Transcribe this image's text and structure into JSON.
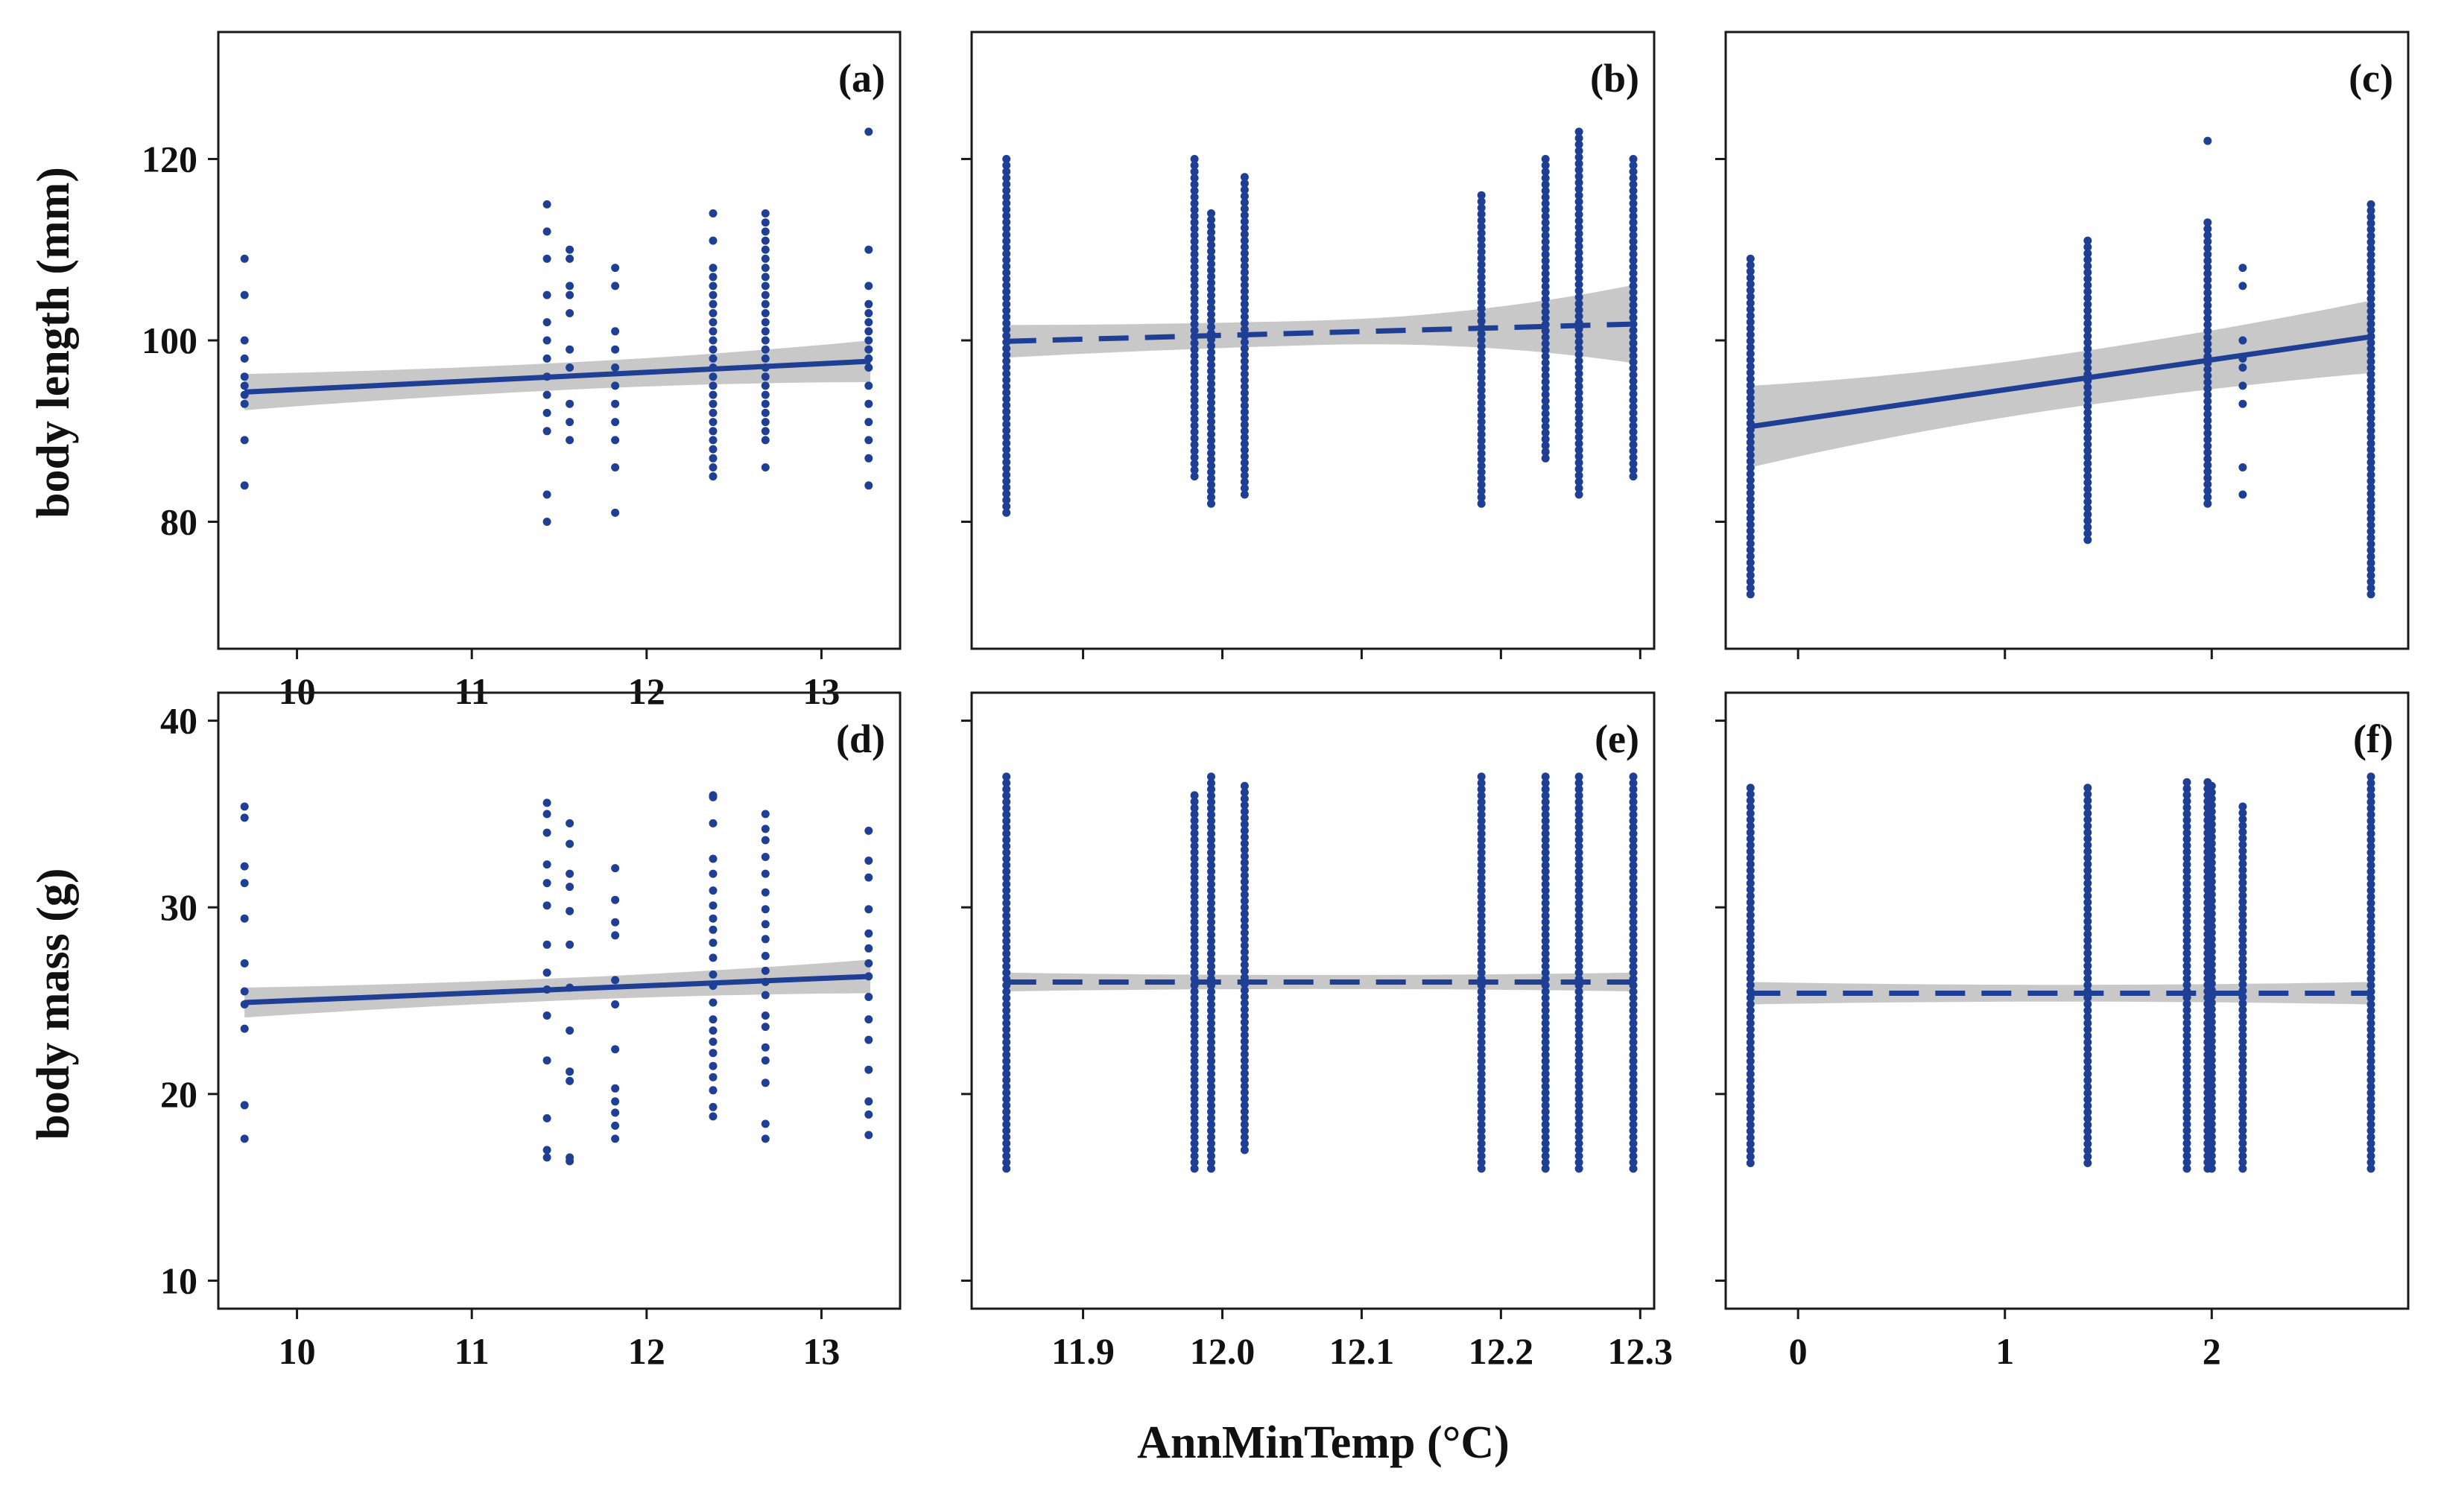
{
  "figure": {
    "x_title": "AnnMinTemp (°C)",
    "colors": {
      "points": "#1f3f95",
      "fit_line": "#1f3f95",
      "confidence_band": "#c8c8c8",
      "frame": "#1a1a1a"
    }
  },
  "chart_data": [
    {
      "type": "scatter",
      "label": "(a)",
      "ylabel": "body length (mm)",
      "xlabel": "AnnMinTemp (°C)",
      "xlim": [
        9.55,
        13.45
      ],
      "ylim": [
        66,
        134
      ],
      "xticks": [
        10,
        11,
        12,
        13
      ],
      "yticks": [
        80,
        100,
        120
      ],
      "show_xtick_labels": true,
      "show_ytick_labels": true,
      "fit": {
        "x": [
          9.7,
          13.28
        ],
        "y": [
          94.3,
          97.7
        ],
        "band_halfwidth": [
          2.0,
          2.3
        ],
        "significant": true
      },
      "columns": [
        {
          "x": 9.7,
          "y": [
            84,
            89,
            93,
            94,
            95,
            96,
            98,
            100,
            105,
            109
          ]
        },
        {
          "x": 11.43,
          "y": [
            80,
            83,
            90,
            92,
            94,
            96,
            98,
            100,
            102,
            105,
            109,
            112,
            115
          ]
        },
        {
          "x": 11.56,
          "y": [
            89,
            91,
            93,
            97,
            99,
            103,
            105,
            106,
            109,
            110
          ]
        },
        {
          "x": 11.82,
          "y": [
            81,
            86,
            89,
            91,
            93,
            95,
            97,
            99,
            101,
            106,
            108
          ]
        },
        {
          "x": 12.38,
          "y": [
            85,
            86,
            87,
            88,
            89,
            90,
            91,
            92,
            93,
            94,
            95,
            96,
            97,
            98,
            99,
            100,
            101,
            102,
            103,
            104,
            105,
            106,
            107,
            108,
            111,
            114
          ]
        },
        {
          "x": 12.68,
          "y": [
            86,
            89,
            90,
            91,
            92,
            93,
            94,
            95,
            96,
            97,
            98,
            99,
            100,
            101,
            102,
            103,
            104,
            105,
            106,
            107,
            108,
            109,
            110,
            111,
            112,
            113,
            114
          ]
        },
        {
          "x": 13.27,
          "y": [
            84,
            87,
            89,
            91,
            93,
            95,
            97,
            98,
            99,
            100,
            101,
            102,
            103,
            104,
            106,
            110,
            123
          ]
        }
      ]
    },
    {
      "type": "scatter",
      "label": "(b)",
      "ylabel": "",
      "xlabel": "AnnMinTemp (°C)",
      "xlim": [
        11.82,
        12.31
      ],
      "ylim": [
        66,
        134
      ],
      "xticks": [
        11.9,
        12.0,
        12.1,
        12.2,
        12.3
      ],
      "yticks": [
        80,
        100,
        120
      ],
      "show_xtick_labels": false,
      "show_ytick_labels": false,
      "fit": {
        "x": [
          11.845,
          12.295
        ],
        "y": [
          99.9,
          101.8
        ],
        "band_halfwidth": [
          1.8,
          4.3
        ],
        "significant": false
      },
      "columns": [
        {
          "x": 11.845,
          "y_range": [
            81,
            120
          ]
        },
        {
          "x": 11.98,
          "y_range": [
            85,
            120
          ]
        },
        {
          "x": 11.992,
          "y_range": [
            82,
            114
          ]
        },
        {
          "x": 12.016,
          "y_range": [
            83,
            118
          ]
        },
        {
          "x": 12.186,
          "y_range": [
            82,
            116
          ]
        },
        {
          "x": 12.232,
          "y_range": [
            87,
            120
          ]
        },
        {
          "x": 12.256,
          "y_range": [
            83,
            123
          ]
        },
        {
          "x": 12.295,
          "y_range": [
            85,
            120
          ]
        }
      ]
    },
    {
      "type": "scatter",
      "label": "(c)",
      "ylabel": "",
      "xlabel": "AnnMinTemp (°C)",
      "xlim": [
        -0.35,
        2.95
      ],
      "ylim": [
        66,
        134
      ],
      "xticks": [
        0,
        1,
        2
      ],
      "yticks": [
        80,
        100,
        120
      ],
      "show_xtick_labels": false,
      "show_ytick_labels": false,
      "fit": {
        "x": [
          -0.23,
          2.77
        ],
        "y": [
          90.5,
          100.4
        ],
        "band_halfwidth": [
          4.5,
          4.0
        ],
        "significant": true
      },
      "columns": [
        {
          "x": -0.23,
          "y_range": [
            72,
            109
          ]
        },
        {
          "x": 1.4,
          "y_range": [
            78,
            111
          ]
        },
        {
          "x": 1.98,
          "y_range": [
            82,
            113
          ],
          "extra": [
            122
          ]
        },
        {
          "x": 2.15,
          "y": [
            83,
            86,
            93,
            95,
            97,
            98,
            100,
            106,
            108
          ]
        },
        {
          "x": 2.77,
          "y_range": [
            72,
            115
          ]
        }
      ]
    },
    {
      "type": "scatter",
      "label": "(d)",
      "ylabel": "body mass (g)",
      "xlabel": "AnnMinTemp (°C)",
      "xlim": [
        9.55,
        13.45
      ],
      "ylim": [
        8.5,
        41.5
      ],
      "xticks": [
        10,
        11,
        12,
        13
      ],
      "yticks": [
        10,
        20,
        30,
        40
      ],
      "show_xtick_labels": true,
      "show_ytick_labels": true,
      "fit": {
        "x": [
          9.7,
          13.28
        ],
        "y": [
          24.9,
          26.3
        ],
        "band_halfwidth": [
          0.8,
          0.9
        ],
        "significant": true
      },
      "columns": [
        {
          "x": 9.7,
          "y": [
            17.6,
            19.4,
            23.5,
            24.8,
            25.5,
            27.0,
            29.4,
            31.3,
            32.2,
            34.8,
            35.4
          ]
        },
        {
          "x": 11.43,
          "y": [
            16.6,
            17.0,
            18.7,
            21.8,
            24.2,
            25.6,
            26.5,
            28.0,
            30.1,
            31.3,
            32.3,
            34.0,
            35.0,
            35.6
          ]
        },
        {
          "x": 11.56,
          "y": [
            16.4,
            16.6,
            20.7,
            21.2,
            23.4,
            25.7,
            28.0,
            29.8,
            31.1,
            31.8,
            33.4,
            34.5
          ]
        },
        {
          "x": 11.82,
          "y": [
            17.6,
            18.3,
            19.0,
            19.6,
            20.3,
            22.4,
            24.8,
            26.1,
            28.5,
            29.2,
            30.4,
            32.1
          ]
        },
        {
          "x": 12.38,
          "y": [
            18.8,
            19.3,
            20.2,
            20.9,
            21.5,
            22.2,
            22.8,
            23.4,
            24.0,
            24.9,
            25.8,
            26.4,
            27.3,
            28.1,
            28.8,
            29.4,
            30.1,
            30.9,
            31.8,
            32.6,
            34.5,
            35.9,
            36.0
          ]
        },
        {
          "x": 12.68,
          "y": [
            17.6,
            18.4,
            20.6,
            21.8,
            22.5,
            23.6,
            24.2,
            25.3,
            26.0,
            26.6,
            27.4,
            28.3,
            29.1,
            29.9,
            30.8,
            31.8,
            32.7,
            33.6,
            34.2,
            35.0
          ]
        },
        {
          "x": 13.27,
          "y": [
            17.8,
            18.9,
            19.6,
            21.3,
            22.9,
            24.0,
            25.2,
            26.3,
            27.0,
            27.8,
            28.6,
            29.9,
            31.6,
            32.5,
            34.1
          ]
        }
      ]
    },
    {
      "type": "scatter",
      "label": "(e)",
      "ylabel": "",
      "xlabel": "AnnMinTemp (°C)",
      "xlim": [
        11.82,
        12.31
      ],
      "ylim": [
        8.5,
        41.5
      ],
      "xticks": [
        11.9,
        12.0,
        12.1,
        12.2,
        12.3
      ],
      "yticks": [
        10,
        20,
        30,
        40
      ],
      "show_xtick_labels": true,
      "show_ytick_labels": false,
      "fit": {
        "x": [
          11.845,
          12.295
        ],
        "y": [
          26.0,
          26.0
        ],
        "band_halfwidth": [
          0.5,
          0.5
        ],
        "significant": false
      },
      "columns": [
        {
          "x": 11.845,
          "y_range": [
            16,
            37
          ]
        },
        {
          "x": 11.98,
          "y_range": [
            16,
            36
          ]
        },
        {
          "x": 11.992,
          "y_range": [
            16,
            37
          ]
        },
        {
          "x": 12.016,
          "y_range": [
            17,
            36.5
          ]
        },
        {
          "x": 12.186,
          "y_range": [
            16,
            37
          ]
        },
        {
          "x": 12.232,
          "y_range": [
            16,
            37
          ]
        },
        {
          "x": 12.256,
          "y_range": [
            16,
            37
          ]
        },
        {
          "x": 12.295,
          "y_range": [
            16,
            37
          ]
        }
      ]
    },
    {
      "type": "scatter",
      "label": "(f)",
      "ylabel": "",
      "xlabel": "AnnMinTemp (°C)",
      "xlim": [
        -0.35,
        2.95
      ],
      "ylim": [
        8.5,
        41.5
      ],
      "xticks": [
        0,
        1,
        2
      ],
      "yticks": [
        10,
        20,
        30,
        40
      ],
      "show_xtick_labels": true,
      "show_ytick_labels": false,
      "fit": {
        "x": [
          -0.23,
          2.77
        ],
        "y": [
          25.4,
          25.4
        ],
        "band_halfwidth": [
          0.6,
          0.6
        ],
        "significant": false
      },
      "columns": [
        {
          "x": -0.23,
          "y_range": [
            16.3,
            36.4
          ]
        },
        {
          "x": 1.4,
          "y_range": [
            16.3,
            36.4
          ]
        },
        {
          "x": 1.88,
          "y_range": [
            16,
            36.7
          ]
        },
        {
          "x": 1.98,
          "y_range": [
            16,
            36.7
          ]
        },
        {
          "x": 2.0,
          "y_range": [
            16,
            36.5
          ]
        },
        {
          "x": 2.15,
          "y_range": [
            16,
            35.4
          ]
        },
        {
          "x": 2.77,
          "y_range": [
            16,
            37
          ]
        }
      ]
    }
  ]
}
